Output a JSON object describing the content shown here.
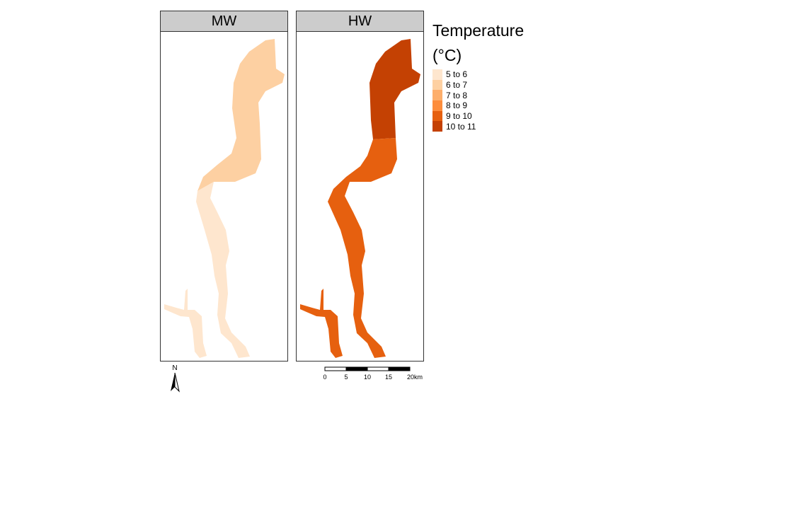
{
  "facets": [
    {
      "label": "MW",
      "fill_upper": "#fdd0a2",
      "fill_lower": "#fee6ce"
    },
    {
      "label": "HW",
      "fill_upper": "#c44103",
      "fill_lower": "#e6600f"
    }
  ],
  "legend": {
    "title": "Temperature\n(°C)",
    "items": [
      {
        "label": "5 to 6",
        "color": "#fee6ce"
      },
      {
        "label": "6 to 7",
        "color": "#fdd0a2"
      },
      {
        "label": "7 to 8",
        "color": "#fdae6b"
      },
      {
        "label": "8 to 9",
        "color": "#fd8d3c"
      },
      {
        "label": "9 to 10",
        "color": "#e6600f"
      },
      {
        "label": "10 to 11",
        "color": "#c44103"
      }
    ]
  },
  "north_arrow": {
    "label": "N"
  },
  "scalebar": {
    "ticks": [
      "0",
      "5",
      "10",
      "15",
      "20km"
    ]
  }
}
